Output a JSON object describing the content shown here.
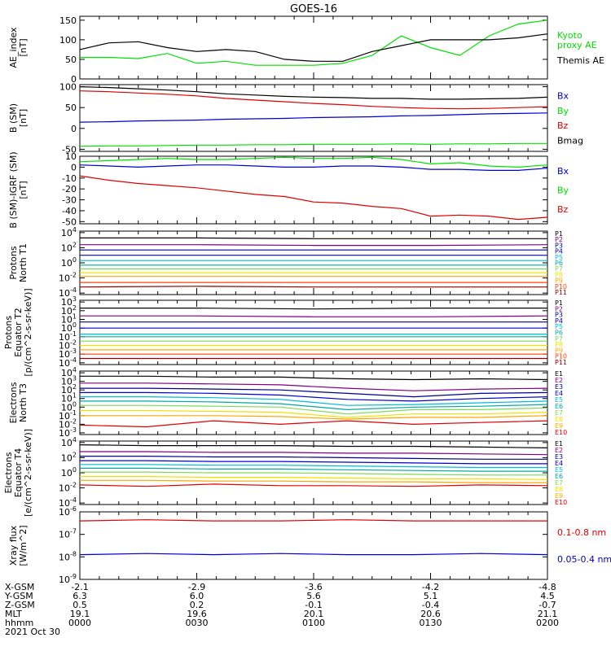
{
  "title": "GOES-16",
  "colors": {
    "black": "#000000",
    "green": "#00e000",
    "blue": "#0000d0",
    "red": "#e00000",
    "purple": "#800080",
    "navy": "#00008b",
    "cyan": "#00bcd4",
    "teal": "#00a8a0",
    "lime": "#7ed957",
    "yellow": "#f0e000",
    "orange": "#ffa500",
    "red_orange": "#ff4000",
    "dark_red": "#8b0000",
    "maroon": "#a00000"
  },
  "time_axis": {
    "tick_times": [
      "0000",
      "0030",
      "0100",
      "0130",
      "0200"
    ],
    "rows": [
      {
        "label": "X-GSM",
        "values": [
          "-2.1",
          "-2.9",
          "-3.6",
          "-4.2",
          "-4.8"
        ]
      },
      {
        "label": "Y-GSM",
        "values": [
          "6.3",
          "6.0",
          "5.6",
          "5.1",
          "4.5"
        ]
      },
      {
        "label": "Z-GSM",
        "values": [
          "0.5",
          "0.2",
          "-0.1",
          "-0.4",
          "-0.7"
        ]
      },
      {
        "label": "MLT",
        "values": [
          "19.1",
          "19.6",
          "20.1",
          "20.6",
          "21.1"
        ]
      },
      {
        "label": "hhmm",
        "values": [
          "0000",
          "0030",
          "0100",
          "0130",
          "0200"
        ]
      }
    ],
    "date": "2021 Oct 30"
  },
  "chart_data": [
    {
      "type": "line",
      "ylabel": [
        "AE_index",
        "[nT]"
      ],
      "yticks": [
        "0",
        "50",
        "100",
        "150"
      ],
      "ylim": [
        0,
        160
      ],
      "x_range_hhmm": [
        "0000",
        "0200"
      ],
      "series": [
        {
          "name": "Kyoto proxy AE",
          "color": "green",
          "values": [
            55,
            55,
            52,
            65,
            40,
            45,
            35,
            35,
            35,
            40,
            60,
            110,
            80,
            60,
            110,
            140,
            150
          ]
        },
        {
          "name": "Themis AE",
          "color": "black",
          "values": [
            75,
            92,
            95,
            80,
            70,
            75,
            70,
            50,
            45,
            45,
            70,
            85,
            100,
            100,
            100,
            105,
            115
          ]
        }
      ],
      "legend": [
        {
          "text": [
            "Kyoto",
            "proxy AE"
          ],
          "color": "green"
        },
        {
          "text": [
            "Themis AE"
          ],
          "color": "black"
        }
      ]
    },
    {
      "type": "line",
      "ylabel": [
        "B (SM)",
        "[nT]"
      ],
      "yticks": [
        "-50",
        "0",
        "50",
        "100"
      ],
      "ylim": [
        -55,
        105
      ],
      "series": [
        {
          "name": "Bmag",
          "color": "black",
          "values": [
            100,
            98,
            95,
            92,
            88,
            83,
            80,
            77,
            75,
            74,
            72,
            72,
            70,
            70,
            71,
            72,
            75
          ]
        },
        {
          "name": "Bx",
          "color": "blue",
          "values": [
            15,
            16,
            18,
            19,
            20,
            22,
            23,
            24,
            26,
            27,
            28,
            30,
            31,
            33,
            35,
            36,
            37
          ]
        },
        {
          "name": "By",
          "color": "green",
          "values": [
            -43,
            -42,
            -42,
            -41,
            -40,
            -40,
            -39,
            -39,
            -38,
            -38,
            -38,
            -37,
            -38,
            -37,
            -37,
            -36,
            -36
          ]
        },
        {
          "name": "Bz",
          "color": "red",
          "values": [
            90,
            88,
            85,
            82,
            78,
            72,
            68,
            64,
            60,
            57,
            53,
            50,
            48,
            47,
            48,
            50,
            52
          ]
        }
      ],
      "legend": [
        {
          "text": [
            "Bx"
          ],
          "color": "blue"
        },
        {
          "text": [
            "By"
          ],
          "color": "green"
        },
        {
          "text": [
            "Bz"
          ],
          "color": "red"
        },
        {
          "text": [
            "Bmag"
          ],
          "color": "black"
        }
      ]
    },
    {
      "type": "line",
      "ylabel": [
        "B (SM)-IGRF (SM)",
        "[nT]"
      ],
      "yticks": [
        "-50",
        "-40",
        "-30",
        "-20",
        "-10",
        "0",
        "10"
      ],
      "ylim": [
        -52,
        10
      ],
      "series": [
        {
          "name": "Bx",
          "color": "blue",
          "values": [
            2,
            1,
            0,
            1,
            2,
            2,
            1,
            0,
            0,
            1,
            1,
            0,
            -2,
            -2,
            -3,
            -3,
            -1
          ]
        },
        {
          "name": "By",
          "color": "green",
          "values": [
            5,
            6,
            7,
            8,
            7,
            7,
            8,
            9,
            8,
            8,
            9,
            7,
            3,
            4,
            1,
            0,
            2
          ]
        },
        {
          "name": "Bz",
          "color": "red",
          "values": [
            -8,
            -12,
            -15,
            -17,
            -19,
            -22,
            -25,
            -27,
            -32,
            -33,
            -36,
            -38,
            -45,
            -44,
            -45,
            -48,
            -46
          ]
        }
      ],
      "legend": [
        {
          "text": [
            "Bx"
          ],
          "color": "blue"
        },
        {
          "text": [
            "By"
          ],
          "color": "green"
        },
        {
          "text": [
            "Bz"
          ],
          "color": "red"
        }
      ]
    },
    {
      "type": "line",
      "yscale": "log",
      "ylabel": [
        "Protons",
        "North T1"
      ],
      "yticks": [
        "10^-4",
        "10^-2",
        "10^0",
        "10^2",
        "10^4"
      ],
      "ylim_exp": [
        -4.2,
        4.2
      ],
      "series": [
        {
          "name": "P1",
          "color": "black",
          "log10": [
            3.3,
            3.3,
            3.2,
            3.2,
            3.2
          ]
        },
        {
          "name": "P2",
          "color": "purple",
          "log10": [
            2.4,
            2.4,
            2.3,
            2.3,
            2.4
          ]
        },
        {
          "name": "P3",
          "color": "navy",
          "log10": [
            1.7,
            1.7,
            1.7,
            1.7,
            1.7
          ]
        },
        {
          "name": "P4",
          "color": "blue",
          "log10": [
            1.0,
            1.0,
            1.0,
            1.0,
            1.0
          ]
        },
        {
          "name": "P5",
          "color": "cyan",
          "log10": [
            0.3,
            0.3,
            0.3,
            0.3,
            0.3
          ]
        },
        {
          "name": "P6",
          "color": "teal",
          "log10": [
            -0.3,
            -0.3,
            -0.3,
            -0.3,
            -0.3
          ]
        },
        {
          "name": "P7",
          "color": "lime",
          "log10": [
            -0.8,
            -0.8,
            -0.8,
            -0.8,
            -0.8
          ]
        },
        {
          "name": "P8",
          "color": "yellow",
          "log10": [
            -1.3,
            -1.3,
            -1.3,
            -1.3,
            -1.3
          ]
        },
        {
          "name": "P9",
          "color": "orange",
          "log10": [
            -1.8,
            -1.8,
            -1.8,
            -1.8,
            -1.8
          ]
        },
        {
          "name": "P10",
          "color": "red_orange",
          "log10": [
            -2.6,
            -2.6,
            -2.6,
            -2.6,
            -2.6
          ]
        },
        {
          "name": "P11",
          "color": "dark_red",
          "log10": [
            -3.2,
            -3.1,
            -3.2,
            -3.2,
            -3.2
          ]
        }
      ]
    },
    {
      "type": "line",
      "yscale": "log",
      "ylabel": [
        "Protons",
        "Equator T2",
        "[p/(cm^2-s-sr-keV)]"
      ],
      "yticks": [
        "10^-4",
        "10^-3",
        "10^-2",
        "10^-1",
        "10^0",
        "10^1",
        "10^2",
        "10^3"
      ],
      "ylim_exp": [
        -4.2,
        3.2
      ],
      "series": [
        {
          "name": "P1",
          "color": "black",
          "log10": [
            2.3,
            2.3,
            2.2,
            2.3,
            2.3
          ]
        },
        {
          "name": "P2",
          "color": "purple",
          "log10": [
            1.4,
            1.4,
            1.3,
            1.3,
            1.4
          ]
        },
        {
          "name": "P3",
          "color": "navy",
          "log10": [
            0.7,
            0.7,
            0.7,
            0.7,
            0.7
          ]
        },
        {
          "name": "P4",
          "color": "blue",
          "log10": [
            0.0,
            0.0,
            0.0,
            0.0,
            0.0
          ]
        },
        {
          "name": "P5",
          "color": "cyan",
          "log10": [
            -0.7,
            -0.7,
            -0.7,
            -0.7,
            -0.7
          ]
        },
        {
          "name": "P6",
          "color": "teal",
          "log10": [
            -1.0,
            -1.0,
            -1.0,
            -1.0,
            -1.0
          ]
        },
        {
          "name": "P7",
          "color": "lime",
          "log10": [
            -1.5,
            -1.5,
            -1.5,
            -1.5,
            -1.5
          ]
        },
        {
          "name": "P8",
          "color": "yellow",
          "log10": [
            -2.0,
            -2.0,
            -2.0,
            -2.0,
            -2.0
          ]
        },
        {
          "name": "P9",
          "color": "orange",
          "log10": [
            -2.5,
            -2.5,
            -2.5,
            -2.5,
            -2.5
          ]
        },
        {
          "name": "P10",
          "color": "red_orange",
          "log10": [
            -3.0,
            -3.0,
            -3.0,
            -3.0,
            -3.0
          ]
        },
        {
          "name": "P11",
          "color": "dark_red",
          "log10": [
            -3.5,
            -3.5,
            -3.5,
            -3.5,
            -3.5
          ]
        }
      ]
    },
    {
      "type": "line",
      "yscale": "log",
      "ylabel": [
        "Electrons",
        "North T3"
      ],
      "yticks": [
        "10^-3",
        "10^-2",
        "10^-1",
        "10^0",
        "10^1",
        "10^2",
        "10^3",
        "10^4"
      ],
      "ylim_exp": [
        -3.2,
        4.2
      ],
      "series": [
        {
          "name": "E1",
          "color": "black",
          "log10": [
            3.6,
            3.6,
            3.5,
            3.5,
            3.3,
            3.2,
            3.3,
            3.2
          ]
        },
        {
          "name": "E2",
          "color": "purple",
          "log10": [
            2.8,
            2.8,
            2.7,
            2.6,
            2.2,
            1.9,
            2.1,
            2.2
          ]
        },
        {
          "name": "E3",
          "color": "navy",
          "log10": [
            2.2,
            2.2,
            2.1,
            2.0,
            1.6,
            1.2,
            1.6,
            1.7
          ]
        },
        {
          "name": "E4",
          "color": "blue",
          "log10": [
            1.7,
            1.7,
            1.6,
            1.4,
            0.9,
            0.7,
            1.0,
            1.2
          ]
        },
        {
          "name": "E5",
          "color": "cyan",
          "log10": [
            1.2,
            1.2,
            1.1,
            0.9,
            0.2,
            0.3,
            0.5,
            0.7
          ]
        },
        {
          "name": "E6",
          "color": "teal",
          "log10": [
            0.7,
            0.7,
            0.6,
            0.4,
            -0.3,
            0.0,
            0.1,
            0.3
          ]
        },
        {
          "name": "E7",
          "color": "lime",
          "log10": [
            0.2,
            0.2,
            0.1,
            0.0,
            -0.8,
            -0.3,
            -0.3,
            -0.1
          ]
        },
        {
          "name": "E8",
          "color": "yellow",
          "log10": [
            -0.4,
            -0.4,
            -0.5,
            -0.6,
            -1.2,
            -0.8,
            -0.8,
            -0.6
          ]
        },
        {
          "name": "E9",
          "color": "orange",
          "log10": [
            -1.0,
            -1.0,
            -1.0,
            -1.1,
            -1.4,
            -1.2,
            -1.2,
            -1.0
          ]
        },
        {
          "name": "E10",
          "color": "red",
          "log10": [
            -2.1,
            -2.3,
            -1.6,
            -2.0,
            -1.6,
            -2.0,
            -1.8,
            -1.6
          ]
        }
      ]
    },
    {
      "type": "line",
      "yscale": "log",
      "ylabel": [
        "Electrons",
        "Equator T4",
        "[e/(cm^2-s-sr-keV)]"
      ],
      "yticks": [
        "10^-4",
        "10^-2",
        "10^0",
        "10^2",
        "10^4"
      ],
      "ylim_exp": [
        -4.2,
        4.2
      ],
      "series": [
        {
          "name": "E1",
          "color": "black",
          "log10": [
            3.7,
            3.6,
            3.6,
            3.6,
            3.5,
            3.5,
            3.4,
            3.3
          ]
        },
        {
          "name": "E2",
          "color": "purple",
          "log10": [
            2.8,
            2.8,
            2.7,
            2.7,
            2.6,
            2.6,
            2.5,
            2.4
          ]
        },
        {
          "name": "E3",
          "color": "navy",
          "log10": [
            2.2,
            2.2,
            2.1,
            2.1,
            2.0,
            1.9,
            1.8,
            1.8
          ]
        },
        {
          "name": "E4",
          "color": "blue",
          "log10": [
            1.6,
            1.6,
            1.5,
            1.5,
            1.4,
            1.3,
            1.2,
            1.2
          ]
        },
        {
          "name": "E5",
          "color": "cyan",
          "log10": [
            1.1,
            1.1,
            1.0,
            1.0,
            0.9,
            0.8,
            0.7,
            0.7
          ]
        },
        {
          "name": "E6",
          "color": "teal",
          "log10": [
            0.6,
            0.6,
            0.5,
            0.5,
            0.4,
            0.3,
            0.2,
            0.2
          ]
        },
        {
          "name": "E7",
          "color": "lime",
          "log10": [
            0.1,
            0.1,
            0.0,
            0.0,
            -0.1,
            -0.2,
            -0.3,
            -0.3
          ]
        },
        {
          "name": "E8",
          "color": "yellow",
          "log10": [
            -0.5,
            -0.5,
            -0.6,
            -0.6,
            -0.7,
            -0.8,
            -0.8,
            -0.9
          ]
        },
        {
          "name": "E9",
          "color": "orange",
          "log10": [
            -1.0,
            -1.0,
            -1.1,
            -1.1,
            -1.2,
            -1.2,
            -1.3,
            -1.3
          ]
        },
        {
          "name": "E10",
          "color": "red",
          "log10": [
            -1.6,
            -1.8,
            -1.5,
            -1.7,
            -1.7,
            -1.8,
            -1.6,
            -1.7
          ]
        }
      ]
    },
    {
      "type": "line",
      "yscale": "log",
      "ylabel": [
        "Xray flux",
        "[W/m^2]"
      ],
      "yticks": [
        "10^-9",
        "10^-8",
        "10^-7",
        "10^-6"
      ],
      "ylim_exp": [
        -9,
        -6
      ],
      "series": [
        {
          "name": "0.1-0.8 nm",
          "color": "red",
          "log10": [
            -6.4,
            -6.35,
            -6.4,
            -6.4,
            -6.35,
            -6.4,
            -6.4,
            -6.4
          ]
        },
        {
          "name": "0.05-0.4 nm",
          "color": "blue",
          "log10": [
            -7.9,
            -7.85,
            -7.9,
            -7.85,
            -7.9,
            -7.9,
            -7.85,
            -7.9
          ]
        }
      ],
      "legend": [
        {
          "text": [
            "0.1-0.8 nm"
          ],
          "color": "red"
        },
        {
          "text": [
            "0.05-0.4 nm"
          ],
          "color": "blue"
        }
      ]
    }
  ]
}
